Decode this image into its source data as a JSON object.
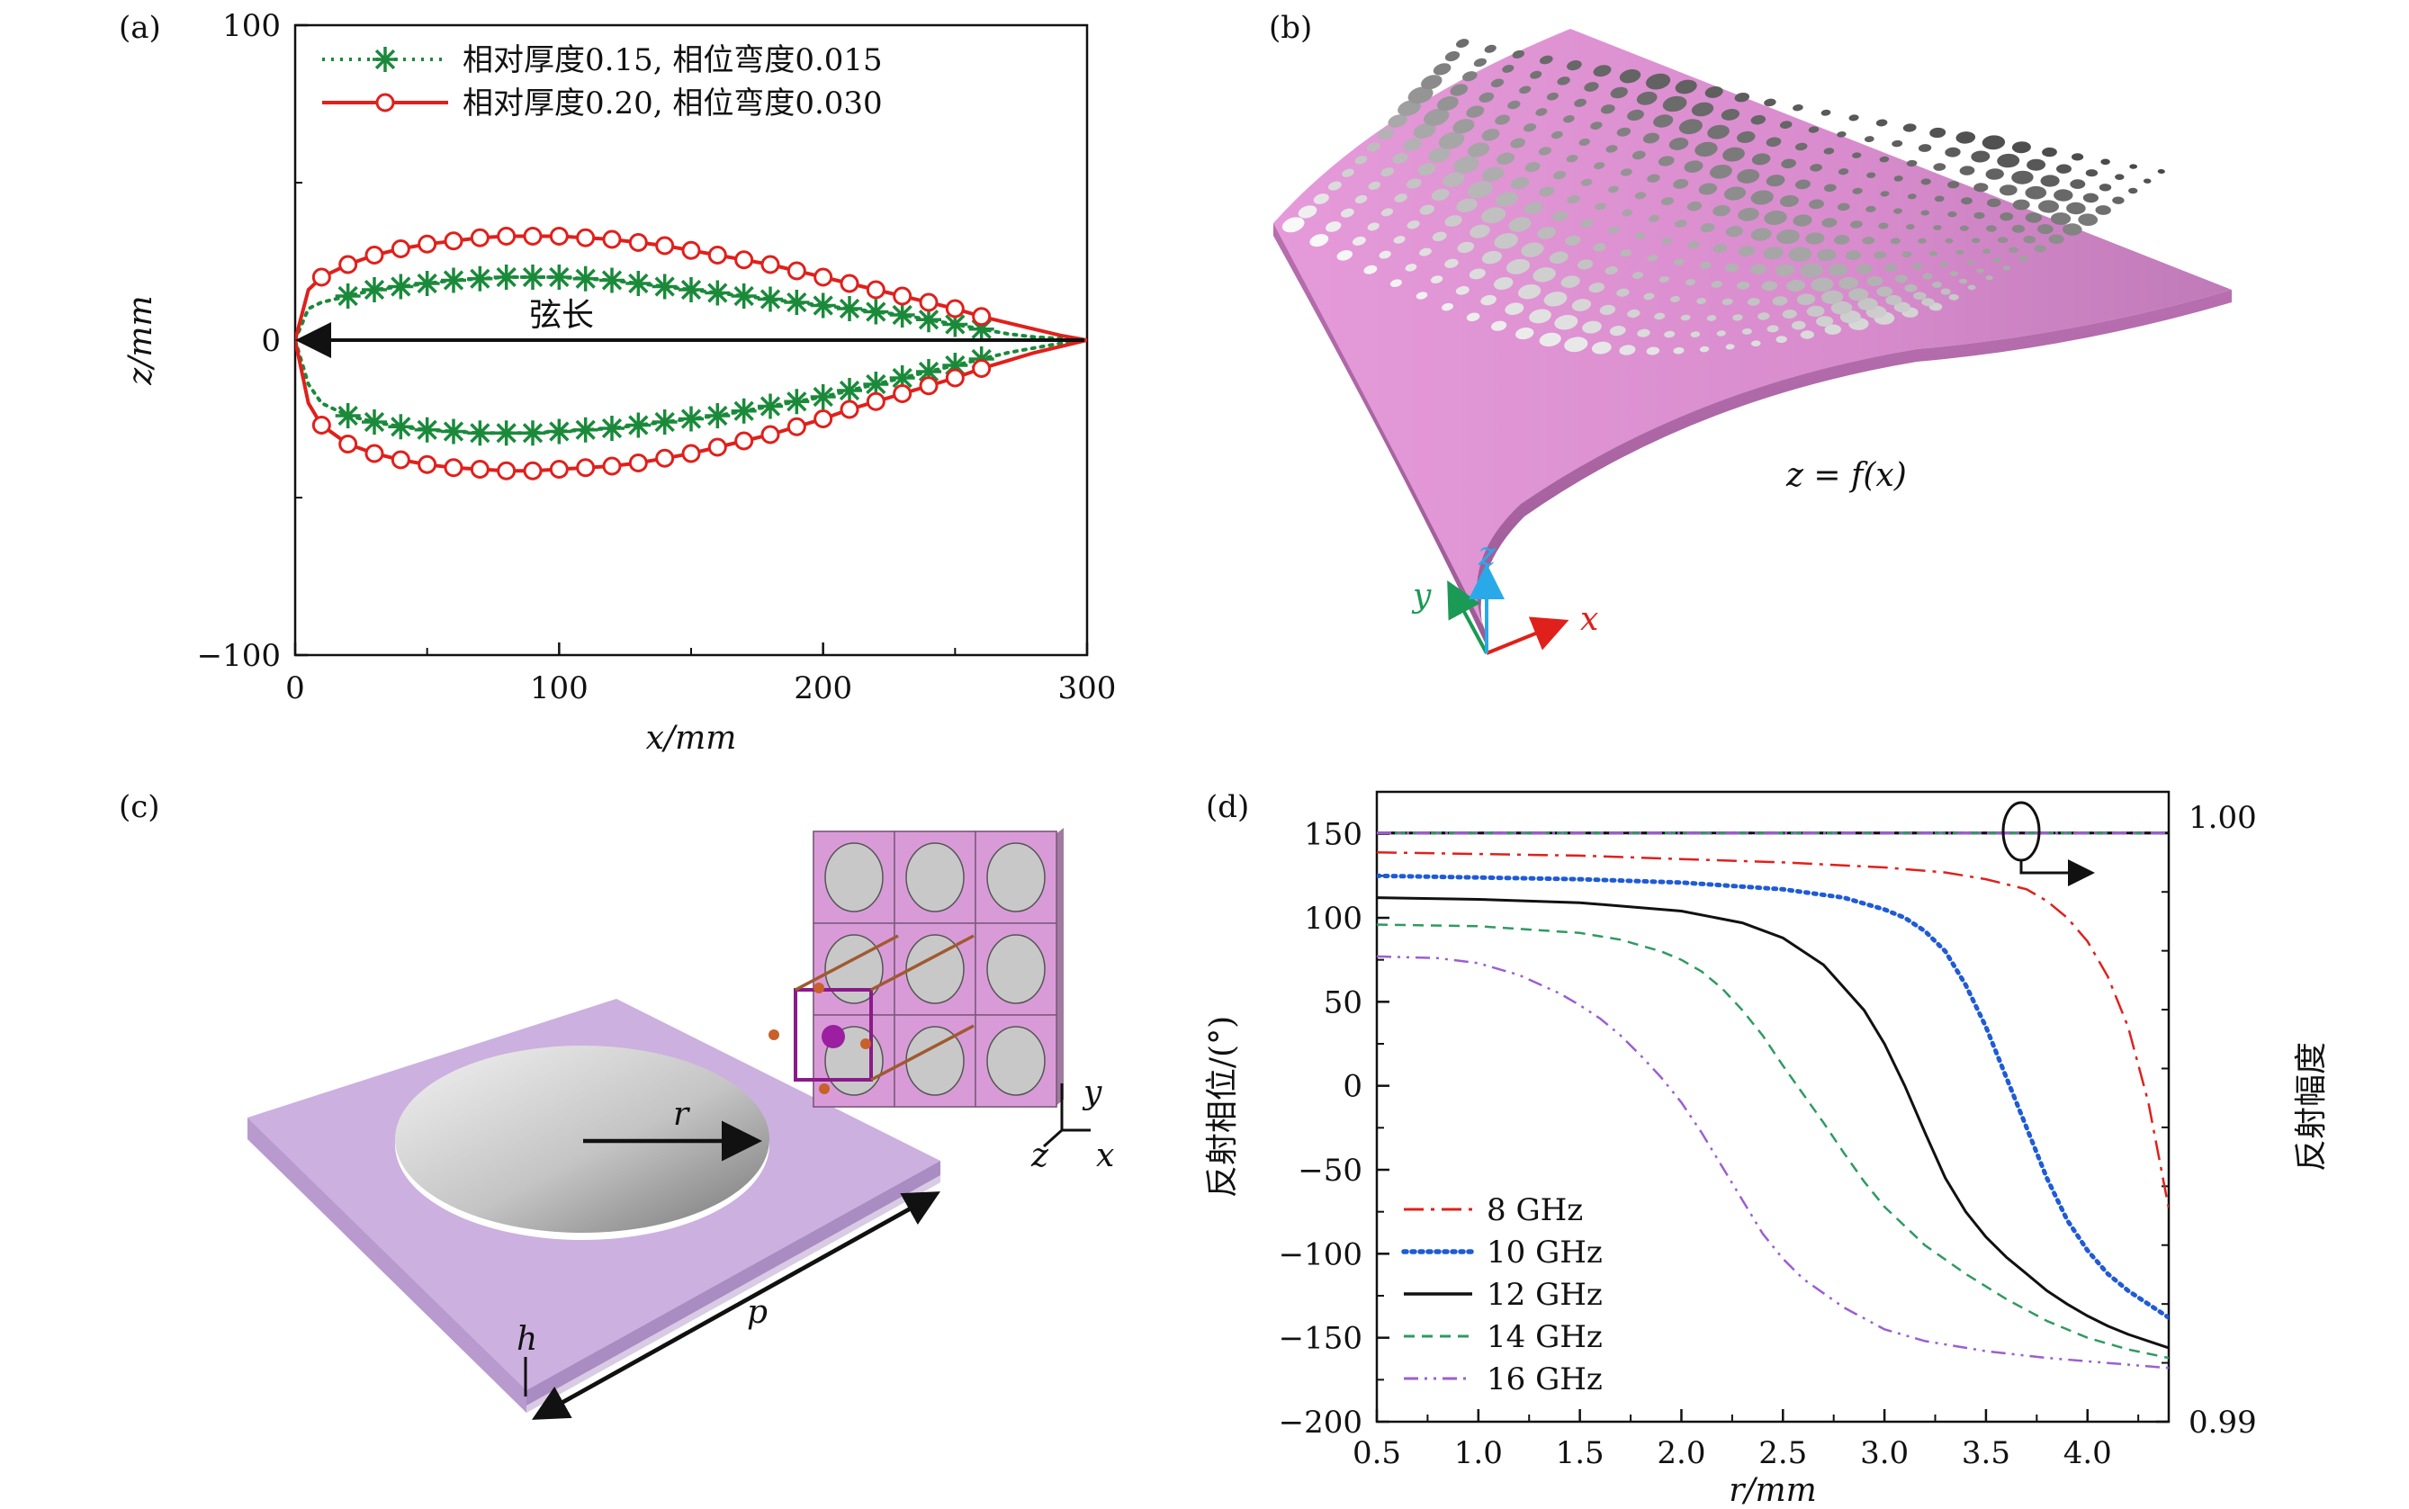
{
  "panels": {
    "a": "(a)",
    "b": "(b)",
    "c": "(c)",
    "d": "(d)"
  },
  "chart_data": [
    {
      "id": "a",
      "type": "line",
      "xlabel": "x/mm",
      "ylabel": "z/mm",
      "xlim": [
        0,
        300
      ],
      "ylim": [
        -100,
        100
      ],
      "xticks": [
        0,
        100,
        200,
        300
      ],
      "yticks": [
        -100,
        0,
        100
      ],
      "x_tick_labels": [
        "0",
        "100",
        "200",
        "300"
      ],
      "y_tick_labels": [
        "−100",
        "0",
        "100"
      ],
      "annotation": "弦长",
      "series": [
        {
          "name": "相对厚度0.15, 相位弯度0.015",
          "color": "#1a8a3a",
          "marker": "asterisk",
          "linestyle": "dotted",
          "upper": [
            [
              0,
              0
            ],
            [
              5,
              10
            ],
            [
              10,
              12
            ],
            [
              20,
              14
            ],
            [
              30,
              16
            ],
            [
              40,
              17
            ],
            [
              50,
              18
            ],
            [
              60,
              19
            ],
            [
              70,
              19.5
            ],
            [
              80,
              20
            ],
            [
              90,
              20
            ],
            [
              100,
              20
            ],
            [
              110,
              19.5
            ],
            [
              120,
              19
            ],
            [
              130,
              18
            ],
            [
              140,
              17
            ],
            [
              150,
              16
            ],
            [
              160,
              15
            ],
            [
              170,
              14
            ],
            [
              180,
              13
            ],
            [
              190,
              12
            ],
            [
              200,
              11
            ],
            [
              210,
              10
            ],
            [
              220,
              9
            ],
            [
              230,
              8
            ],
            [
              240,
              6.5
            ],
            [
              250,
              5
            ],
            [
              260,
              3.5
            ],
            [
              270,
              2
            ],
            [
              280,
              1
            ],
            [
              290,
              0.5
            ],
            [
              300,
              0
            ]
          ],
          "lower": [
            [
              0,
              0
            ],
            [
              5,
              -14
            ],
            [
              10,
              -20
            ],
            [
              20,
              -24
            ],
            [
              30,
              -26
            ],
            [
              40,
              -27.5
            ],
            [
              50,
              -28.5
            ],
            [
              60,
              -29
            ],
            [
              70,
              -29.5
            ],
            [
              80,
              -29.5
            ],
            [
              90,
              -29.5
            ],
            [
              100,
              -29
            ],
            [
              110,
              -28.5
            ],
            [
              120,
              -28
            ],
            [
              130,
              -27
            ],
            [
              140,
              -26
            ],
            [
              150,
              -25
            ],
            [
              160,
              -24
            ],
            [
              170,
              -22.5
            ],
            [
              180,
              -21
            ],
            [
              190,
              -19.5
            ],
            [
              200,
              -18
            ],
            [
              210,
              -16
            ],
            [
              220,
              -14
            ],
            [
              230,
              -12
            ],
            [
              240,
              -10
            ],
            [
              250,
              -8
            ],
            [
              260,
              -6
            ],
            [
              270,
              -4
            ],
            [
              280,
              -2.5
            ],
            [
              290,
              -1
            ],
            [
              300,
              0
            ]
          ],
          "marker_x": [
            20,
            30,
            40,
            50,
            60,
            70,
            80,
            90,
            100,
            110,
            120,
            130,
            140,
            150,
            160,
            170,
            180,
            190,
            200,
            210,
            220,
            230,
            240,
            250,
            260
          ]
        },
        {
          "name": "相对厚度0.20, 相位弯度0.030",
          "color": "#e0201b",
          "marker": "open-circle",
          "linestyle": "solid",
          "upper": [
            [
              0,
              0
            ],
            [
              5,
              16
            ],
            [
              10,
              20
            ],
            [
              20,
              24
            ],
            [
              30,
              27
            ],
            [
              40,
              29
            ],
            [
              50,
              30.5
            ],
            [
              60,
              31.5
            ],
            [
              70,
              32.5
            ],
            [
              80,
              33
            ],
            [
              90,
              33
            ],
            [
              100,
              33
            ],
            [
              110,
              32.5
            ],
            [
              120,
              32
            ],
            [
              130,
              31
            ],
            [
              140,
              30
            ],
            [
              150,
              28.5
            ],
            [
              160,
              27
            ],
            [
              170,
              25.5
            ],
            [
              180,
              24
            ],
            [
              190,
              22
            ],
            [
              200,
              20
            ],
            [
              210,
              18
            ],
            [
              220,
              16
            ],
            [
              230,
              14
            ],
            [
              240,
              12
            ],
            [
              250,
              10
            ],
            [
              260,
              7.5
            ],
            [
              270,
              5.5
            ],
            [
              280,
              3.5
            ],
            [
              290,
              1.5
            ],
            [
              300,
              0
            ]
          ],
          "lower": [
            [
              0,
              0
            ],
            [
              5,
              -20
            ],
            [
              10,
              -27
            ],
            [
              20,
              -33
            ],
            [
              30,
              -36
            ],
            [
              40,
              -38
            ],
            [
              50,
              -39.5
            ],
            [
              60,
              -40.5
            ],
            [
              70,
              -41
            ],
            [
              80,
              -41.5
            ],
            [
              90,
              -41.5
            ],
            [
              100,
              -41
            ],
            [
              110,
              -40.5
            ],
            [
              120,
              -40
            ],
            [
              130,
              -39
            ],
            [
              140,
              -37.5
            ],
            [
              150,
              -36
            ],
            [
              160,
              -34
            ],
            [
              170,
              -32
            ],
            [
              180,
              -30
            ],
            [
              190,
              -27.5
            ],
            [
              200,
              -25
            ],
            [
              210,
              -22
            ],
            [
              220,
              -19.5
            ],
            [
              230,
              -17
            ],
            [
              240,
              -14.5
            ],
            [
              250,
              -12
            ],
            [
              260,
              -9
            ],
            [
              270,
              -6.5
            ],
            [
              280,
              -4
            ],
            [
              290,
              -2
            ],
            [
              300,
              0
            ]
          ],
          "marker_x": [
            10,
            20,
            30,
            40,
            50,
            60,
            70,
            80,
            90,
            100,
            110,
            120,
            130,
            140,
            150,
            160,
            170,
            180,
            190,
            200,
            210,
            220,
            230,
            240,
            250,
            260
          ]
        }
      ]
    },
    {
      "id": "d",
      "type": "line",
      "xlabel": "r/mm",
      "ylabel": "反射相位/(°)",
      "ylabel_right": "反射幅度",
      "xlim": [
        0.5,
        4.4
      ],
      "ylim": [
        -200,
        175
      ],
      "ylim_right": [
        0.99,
        1.0
      ],
      "xticks": [
        0.5,
        1.0,
        1.5,
        2.0,
        2.5,
        3.0,
        3.5,
        4.0
      ],
      "yticks": [
        -200,
        -150,
        -100,
        -50,
        0,
        50,
        100,
        150
      ],
      "x_tick_labels": [
        "0.5",
        "1.0",
        "1.5",
        "2.0",
        "2.5",
        "3.0",
        "3.5",
        "4.0"
      ],
      "y_tick_labels": [
        "−200",
        "−150",
        "−100",
        "−50",
        "0",
        "50",
        "100",
        "150"
      ],
      "y_right_tick_labels": [
        "0.99",
        "1.00"
      ],
      "amplitude_level": 1.0,
      "series": [
        {
          "name": "8 GHz",
          "color": "#e0201b",
          "linestyle": "dashdot",
          "x": [
            0.5,
            1.0,
            1.5,
            2.0,
            2.5,
            3.0,
            3.3,
            3.5,
            3.7,
            3.8,
            3.9,
            4.0,
            4.1,
            4.2,
            4.3,
            4.4
          ],
          "y": [
            139,
            138,
            137,
            135,
            133,
            130,
            127,
            123,
            117,
            110,
            100,
            86,
            65,
            35,
            -10,
            -73
          ]
        },
        {
          "name": "10 GHz",
          "color": "#1f5bd6",
          "linestyle": "dotted",
          "x": [
            0.5,
            1.0,
            1.5,
            2.0,
            2.5,
            2.8,
            3.0,
            3.1,
            3.2,
            3.3,
            3.4,
            3.5,
            3.6,
            3.7,
            3.8,
            3.9,
            4.0,
            4.1,
            4.2,
            4.3,
            4.4
          ],
          "y": [
            125,
            124,
            123,
            121,
            117,
            112,
            105,
            100,
            92,
            80,
            60,
            35,
            5,
            -25,
            -55,
            -80,
            -98,
            -112,
            -122,
            -130,
            -138
          ]
        },
        {
          "name": "12 GHz",
          "color": "#111111",
          "linestyle": "solid",
          "x": [
            0.5,
            1.0,
            1.5,
            2.0,
            2.3,
            2.5,
            2.7,
            2.9,
            3.0,
            3.1,
            3.2,
            3.3,
            3.4,
            3.5,
            3.6,
            3.7,
            3.8,
            3.9,
            4.0,
            4.1,
            4.2,
            4.3,
            4.4
          ],
          "y": [
            112,
            111,
            109,
            104,
            97,
            88,
            72,
            45,
            25,
            0,
            -28,
            -55,
            -75,
            -90,
            -102,
            -112,
            -122,
            -130,
            -137,
            -143,
            -148,
            -152,
            -156
          ]
        },
        {
          "name": "14 GHz",
          "color": "#2e9a62",
          "linestyle": "dashed",
          "x": [
            0.5,
            1.0,
            1.5,
            1.7,
            1.9,
            2.0,
            2.1,
            2.2,
            2.3,
            2.4,
            2.5,
            2.6,
            2.7,
            2.8,
            2.9,
            3.0,
            3.2,
            3.4,
            3.6,
            3.8,
            4.0,
            4.2,
            4.4
          ],
          "y": [
            96,
            95,
            91,
            87,
            80,
            75,
            68,
            58,
            45,
            30,
            12,
            -5,
            -22,
            -40,
            -57,
            -72,
            -95,
            -112,
            -127,
            -140,
            -150,
            -157,
            -162
          ]
        },
        {
          "name": "16 GHz",
          "color": "#9b5fd0",
          "linestyle": "dashdotdot",
          "x": [
            0.5,
            0.8,
            1.0,
            1.2,
            1.4,
            1.5,
            1.6,
            1.7,
            1.8,
            1.9,
            2.0,
            2.1,
            2.2,
            2.3,
            2.4,
            2.5,
            2.6,
            2.8,
            3.0,
            3.2,
            3.5,
            3.8,
            4.1,
            4.4
          ],
          "y": [
            77,
            76,
            73,
            66,
            55,
            48,
            40,
            30,
            18,
            5,
            -10,
            -28,
            -48,
            -68,
            -88,
            -103,
            -115,
            -132,
            -145,
            -152,
            -158,
            -162,
            -165,
            -168
          ]
        }
      ]
    }
  ],
  "panel_b": {
    "equation": "z = f(x)",
    "axis_x": "x",
    "axis_y": "y",
    "axis_z": "z",
    "surface_color": "#d98bd0"
  },
  "panel_c": {
    "label_r": "r",
    "label_p": "p",
    "label_h": "h",
    "axis_x": "x",
    "axis_y": "y",
    "axis_z": "z",
    "substrate_color": "#c9aedd"
  }
}
